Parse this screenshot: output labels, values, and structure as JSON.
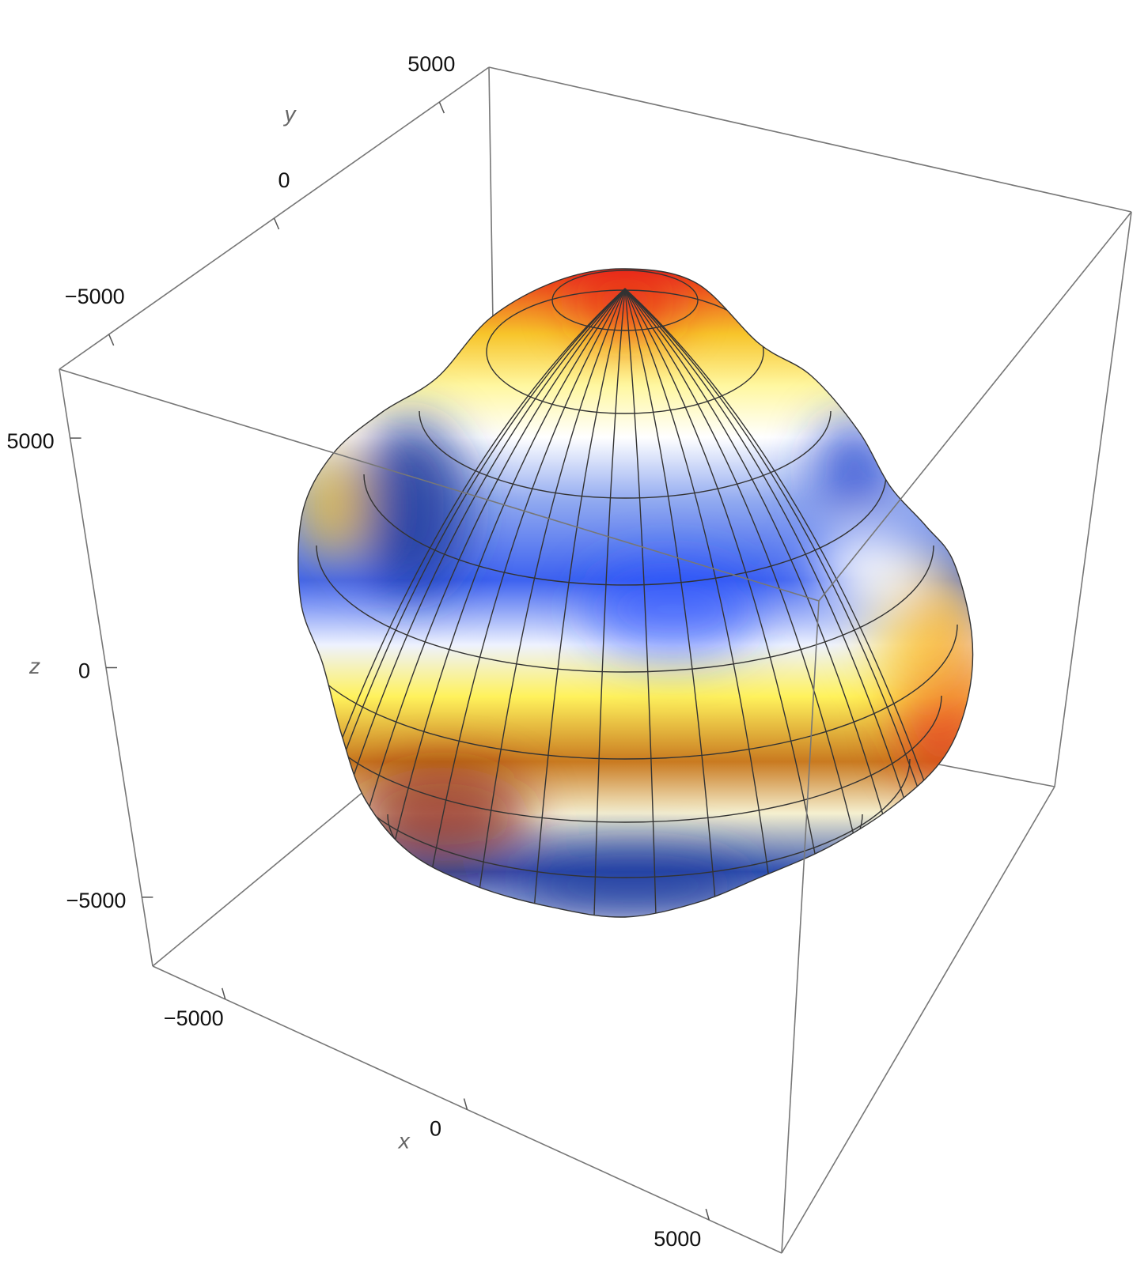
{
  "chart_data": {
    "type": "surface3d",
    "xlabel": "x",
    "ylabel": "y",
    "zlabel": "z",
    "xlim": [
      -6500,
      6500
    ],
    "ylim": [
      -6500,
      6500
    ],
    "zlim": [
      -6500,
      6500
    ],
    "xticks": [
      {
        "value": -5000,
        "label": "−5000"
      },
      0,
      5000
    ],
    "yticks": [
      {
        "value": -5000,
        "label": "−5000"
      },
      0,
      5000
    ],
    "zticks": [
      {
        "value": -5000,
        "label": "−5000"
      },
      0,
      5000
    ]
  }
}
